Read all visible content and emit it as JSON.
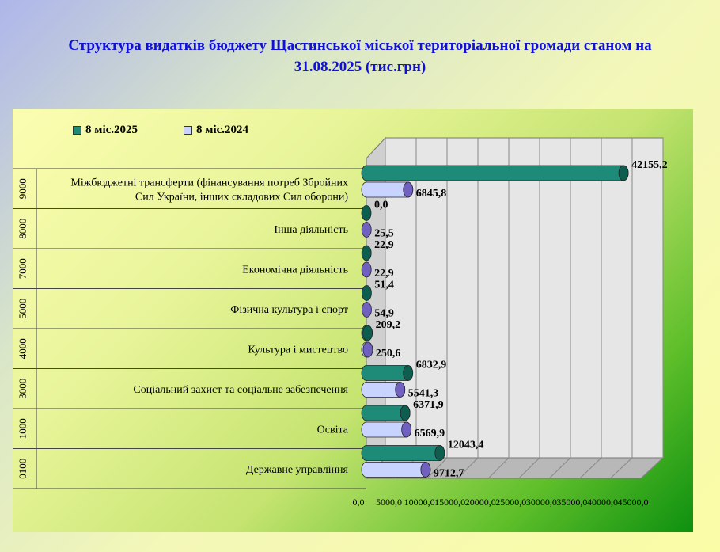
{
  "title": {
    "line1": "Структура видатків бюджету Щастинської міської територіальної громади станом на",
    "line2": "31.08.2025  (тис.грн)"
  },
  "colors": {
    "series_2025": "#1e8a78",
    "series_2024": "#c8d4ff",
    "cap_2024": "#7060c0"
  },
  "chart_data": {
    "type": "bar",
    "orientation": "horizontal",
    "title": "Структура видатків бюджету Щастинської міської територіальної громади станом на 31.08.2025  (тис.грн)",
    "codes": [
      "9000",
      "8000",
      "7000",
      "5000",
      "4000",
      "3000",
      "1000",
      "0100"
    ],
    "categories": [
      "Міжбюджетні трансферти (фінансування потреб Збройних Сил України, інших складових Сил оборони)",
      "Інша діяльність",
      "Економічна діяльність",
      "Фізична культура і спорт",
      "Культура і мистецтво",
      "Соціальний захист та соціальне забезпечення",
      "Освіта",
      "Державне управління"
    ],
    "category_lines": [
      [
        "Міжбюджетні трансферти (фінансування потреб Збройних",
        "Сил України, інших складових Сил оборони)"
      ],
      [
        "Інша діяльність"
      ],
      [
        "Економічна діяльність"
      ],
      [
        "Фізична культура і спорт"
      ],
      [
        "Культура і мистецтво"
      ],
      [
        "Соціальний захист та соціальне забезпечення"
      ],
      [
        "Освіта"
      ],
      [
        "Державне управління"
      ]
    ],
    "series": [
      {
        "name": "8 міс.2025",
        "values": [
          42155.2,
          0.0,
          22.9,
          51.4,
          209.2,
          6832.9,
          6371.9,
          12043.4
        ],
        "labels": [
          "42155,2",
          "0,0",
          "22,9",
          "51,4",
          "209,2",
          "6832,9",
          "6371,9",
          "12043,4"
        ]
      },
      {
        "name": "8 міс.2024",
        "values": [
          6845.8,
          25.5,
          22.9,
          54.9,
          250.6,
          5541.3,
          6569.9,
          9712.7
        ],
        "labels": [
          "6845,8",
          "25,5",
          "22,9",
          "54,9",
          "250,6",
          "5541,3",
          "6569,9",
          "9712,7"
        ]
      }
    ],
    "x_ticks": [
      "0,0",
      "5000,0",
      "10000,0",
      "15000,0",
      "20000,0",
      "25000,0",
      "30000,0",
      "35000,0",
      "40000,0",
      "45000,0"
    ],
    "xlim": [
      0,
      45000
    ],
    "grid": true,
    "legend": "top-left"
  }
}
